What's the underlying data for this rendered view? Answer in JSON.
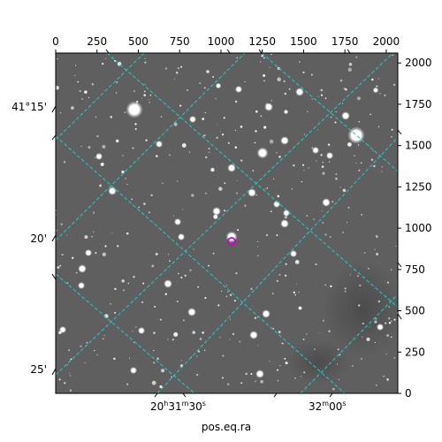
{
  "axes": {
    "top_ticks": [
      "0",
      "250",
      "500",
      "750",
      "1000",
      "1250",
      "1500",
      "1750",
      "2000"
    ],
    "right_ticks": [
      "0",
      "250",
      "500",
      "750",
      "1000",
      "1250",
      "1500",
      "1750",
      "2000"
    ],
    "left_ticks": [
      "41°15'",
      "20'",
      "25'"
    ],
    "bottom_ticks": {
      "t1": {
        "main": "20",
        "h": "h",
        "m_val": "31",
        "m": "m",
        "s_val": "30",
        "s": "s"
      },
      "t2": {
        "main": "32",
        "m": "m",
        "s_val": "00",
        "s": "s"
      }
    },
    "xlabel": "pos.eq.ra"
  },
  "colors": {
    "background": "#ffffff",
    "sky": "#5f5f5f",
    "grid": "#17d1d1",
    "marker": "#d000d0",
    "frame": "#000000"
  },
  "image": {
    "kind": "astronomical star field",
    "marker_icon": "target-circle-icon"
  }
}
